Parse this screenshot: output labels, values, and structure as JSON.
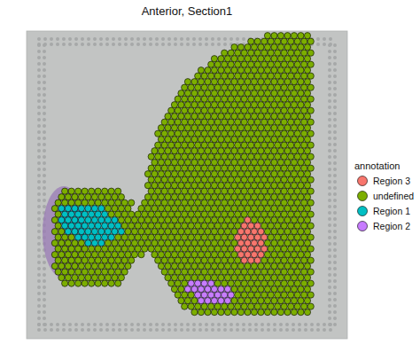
{
  "chart_data": {
    "type": "spatial",
    "title": "Anterior, Section1",
    "legend_title": "annotation",
    "legend": "right",
    "tick_labels": false,
    "xlim": [
      -8.5,
      88
    ],
    "ylim": [
      -0.8,
      52.6
    ],
    "series": [
      {
        "name": "Region 3",
        "color": "#F8766D"
      },
      {
        "name": "undefined",
        "color": "#7CAE00"
      },
      {
        "name": "Region 1",
        "color": "#00BFC4"
      },
      {
        "name": "Region 2",
        "color": "#C77CFF"
      }
    ],
    "rows": [
      {
        "y": 0,
        "segments": [
          [
            64,
            76,
            "undefined"
          ]
        ]
      },
      {
        "y": 1,
        "segments": [
          [
            59,
            77,
            "undefined"
          ]
        ]
      },
      {
        "y": 2,
        "segments": [
          [
            54,
            76,
            "undefined"
          ]
        ]
      },
      {
        "y": 3,
        "segments": [
          [
            51,
            77,
            "undefined"
          ]
        ]
      },
      {
        "y": 4,
        "segments": [
          [
            48,
            76,
            "undefined"
          ]
        ]
      },
      {
        "y": 5,
        "segments": [
          [
            47,
            77,
            "undefined"
          ]
        ]
      },
      {
        "y": 6,
        "segments": [
          [
            44,
            76,
            "undefined"
          ]
        ]
      },
      {
        "y": 7,
        "segments": [
          [
            43,
            77,
            "undefined"
          ]
        ]
      },
      {
        "y": 8,
        "segments": [
          [
            40,
            76,
            "undefined"
          ]
        ]
      },
      {
        "y": 9,
        "segments": [
          [
            39,
            77,
            "undefined"
          ]
        ]
      },
      {
        "y": 10,
        "segments": [
          [
            38,
            76,
            "undefined"
          ]
        ]
      },
      {
        "y": 11,
        "segments": [
          [
            37,
            77,
            "undefined"
          ]
        ]
      },
      {
        "y": 12,
        "segments": [
          [
            36,
            76,
            "undefined"
          ]
        ]
      },
      {
        "y": 13,
        "segments": [
          [
            35,
            77,
            "undefined"
          ]
        ]
      },
      {
        "y": 14,
        "segments": [
          [
            34,
            76,
            "undefined"
          ]
        ]
      },
      {
        "y": 15,
        "segments": [
          [
            33,
            77,
            "undefined"
          ]
        ]
      },
      {
        "y": 16,
        "segments": [
          [
            32,
            76,
            "undefined"
          ]
        ]
      },
      {
        "y": 17,
        "segments": [
          [
            31,
            77,
            "undefined"
          ]
        ]
      },
      {
        "y": 18,
        "segments": [
          [
            32,
            76,
            "undefined"
          ]
        ]
      },
      {
        "y": 19,
        "segments": [
          [
            31,
            77,
            "undefined"
          ]
        ]
      },
      {
        "y": 20,
        "segments": [
          [
            30,
            76,
            "undefined"
          ]
        ]
      },
      {
        "y": 21,
        "segments": [
          [
            29,
            77,
            "undefined"
          ]
        ]
      },
      {
        "y": 22,
        "segments": [
          [
            30,
            76,
            "undefined"
          ]
        ]
      },
      {
        "y": 23,
        "segments": [
          [
            29,
            77,
            "undefined"
          ]
        ]
      },
      {
        "y": 24,
        "segments": [
          [
            28,
            76,
            "undefined"
          ]
        ]
      },
      {
        "y": 25,
        "segments": [
          [
            29,
            77,
            "undefined"
          ]
        ]
      },
      {
        "y": 26,
        "segments": [
          [
            28,
            76,
            "undefined"
          ]
        ]
      },
      {
        "y": 27,
        "segments": [
          [
            3,
            19,
            "undefined"
          ],
          [
            29,
            77,
            "undefined"
          ]
        ]
      },
      {
        "y": 28,
        "segments": [
          [
            2,
            20,
            "undefined"
          ],
          [
            28,
            76,
            "undefined"
          ]
        ]
      },
      {
        "y": 29,
        "segments": [
          [
            1,
            23,
            "undefined"
          ],
          [
            27,
            77,
            "undefined"
          ]
        ]
      },
      {
        "y": 30,
        "segments": [
          [
            0,
            0,
            "undefined"
          ],
          [
            2,
            14,
            "Region 1"
          ],
          [
            16,
            22,
            "undefined"
          ],
          [
            26,
            76,
            "undefined"
          ]
        ]
      },
      {
        "y": 31,
        "segments": [
          [
            1,
            1,
            "undefined"
          ],
          [
            3,
            15,
            "Region 1"
          ],
          [
            17,
            77,
            "undefined"
          ]
        ]
      },
      {
        "y": 32,
        "segments": [
          [
            0,
            0,
            "undefined"
          ],
          [
            2,
            18,
            "Region 1"
          ],
          [
            20,
            56,
            "undefined"
          ],
          [
            58,
            58,
            "Region 3"
          ],
          [
            60,
            76,
            "undefined"
          ]
        ]
      },
      {
        "y": 33,
        "segments": [
          [
            1,
            1,
            "undefined"
          ],
          [
            3,
            19,
            "Region 1"
          ],
          [
            21,
            55,
            "undefined"
          ],
          [
            57,
            61,
            "Region 3"
          ],
          [
            63,
            77,
            "undefined"
          ]
        ]
      },
      {
        "y": 34,
        "segments": [
          [
            0,
            2,
            "undefined"
          ],
          [
            4,
            20,
            "Region 1"
          ],
          [
            22,
            54,
            "undefined"
          ],
          [
            56,
            62,
            "Region 3"
          ],
          [
            64,
            76,
            "undefined"
          ]
        ]
      },
      {
        "y": 35,
        "segments": [
          [
            1,
            5,
            "undefined"
          ],
          [
            7,
            17,
            "Region 1"
          ],
          [
            19,
            53,
            "undefined"
          ],
          [
            55,
            63,
            "Region 3"
          ],
          [
            65,
            77,
            "undefined"
          ]
        ]
      },
      {
        "y": 36,
        "segments": [
          [
            0,
            8,
            "undefined"
          ],
          [
            10,
            14,
            "Region 1"
          ],
          [
            16,
            54,
            "undefined"
          ],
          [
            56,
            62,
            "Region 3"
          ],
          [
            64,
            76,
            "undefined"
          ]
        ]
      },
      {
        "y": 37,
        "segments": [
          [
            1,
            53,
            "undefined"
          ],
          [
            55,
            63,
            "Region 3"
          ],
          [
            65,
            77,
            "undefined"
          ]
        ]
      },
      {
        "y": 38,
        "segments": [
          [
            0,
            26,
            "undefined"
          ],
          [
            30,
            54,
            "undefined"
          ],
          [
            56,
            62,
            "Region 3"
          ],
          [
            64,
            76,
            "undefined"
          ]
        ]
      },
      {
        "y": 39,
        "segments": [
          [
            1,
            23,
            "undefined"
          ],
          [
            31,
            55,
            "undefined"
          ],
          [
            57,
            61,
            "Region 3"
          ],
          [
            63,
            77,
            "undefined"
          ]
        ]
      },
      {
        "y": 40,
        "segments": [
          [
            0,
            22,
            "undefined"
          ],
          [
            32,
            76,
            "undefined"
          ]
        ]
      },
      {
        "y": 41,
        "segments": [
          [
            1,
            21,
            "undefined"
          ],
          [
            33,
            77,
            "undefined"
          ]
        ]
      },
      {
        "y": 42,
        "segments": [
          [
            2,
            20,
            "undefined"
          ],
          [
            34,
            76,
            "undefined"
          ]
        ]
      },
      {
        "y": 43,
        "segments": [
          [
            3,
            19,
            "undefined"
          ],
          [
            35,
            39,
            "undefined"
          ],
          [
            41,
            47,
            "Region 2"
          ],
          [
            49,
            77,
            "undefined"
          ]
        ]
      },
      {
        "y": 44,
        "segments": [
          [
            36,
            38,
            "undefined"
          ],
          [
            40,
            52,
            "Region 2"
          ],
          [
            54,
            76,
            "undefined"
          ]
        ]
      },
      {
        "y": 45,
        "segments": [
          [
            37,
            41,
            "undefined"
          ],
          [
            43,
            53,
            "Region 2"
          ],
          [
            55,
            77,
            "undefined"
          ]
        ]
      },
      {
        "y": 46,
        "segments": [
          [
            38,
            42,
            "undefined"
          ],
          [
            44,
            52,
            "Region 2"
          ],
          [
            54,
            76,
            "undefined"
          ]
        ]
      },
      {
        "y": 47,
        "segments": [
          [
            39,
            77,
            "undefined"
          ]
        ]
      },
      {
        "y": 48,
        "segments": [
          [
            42,
            76,
            "undefined"
          ]
        ]
      }
    ]
  }
}
